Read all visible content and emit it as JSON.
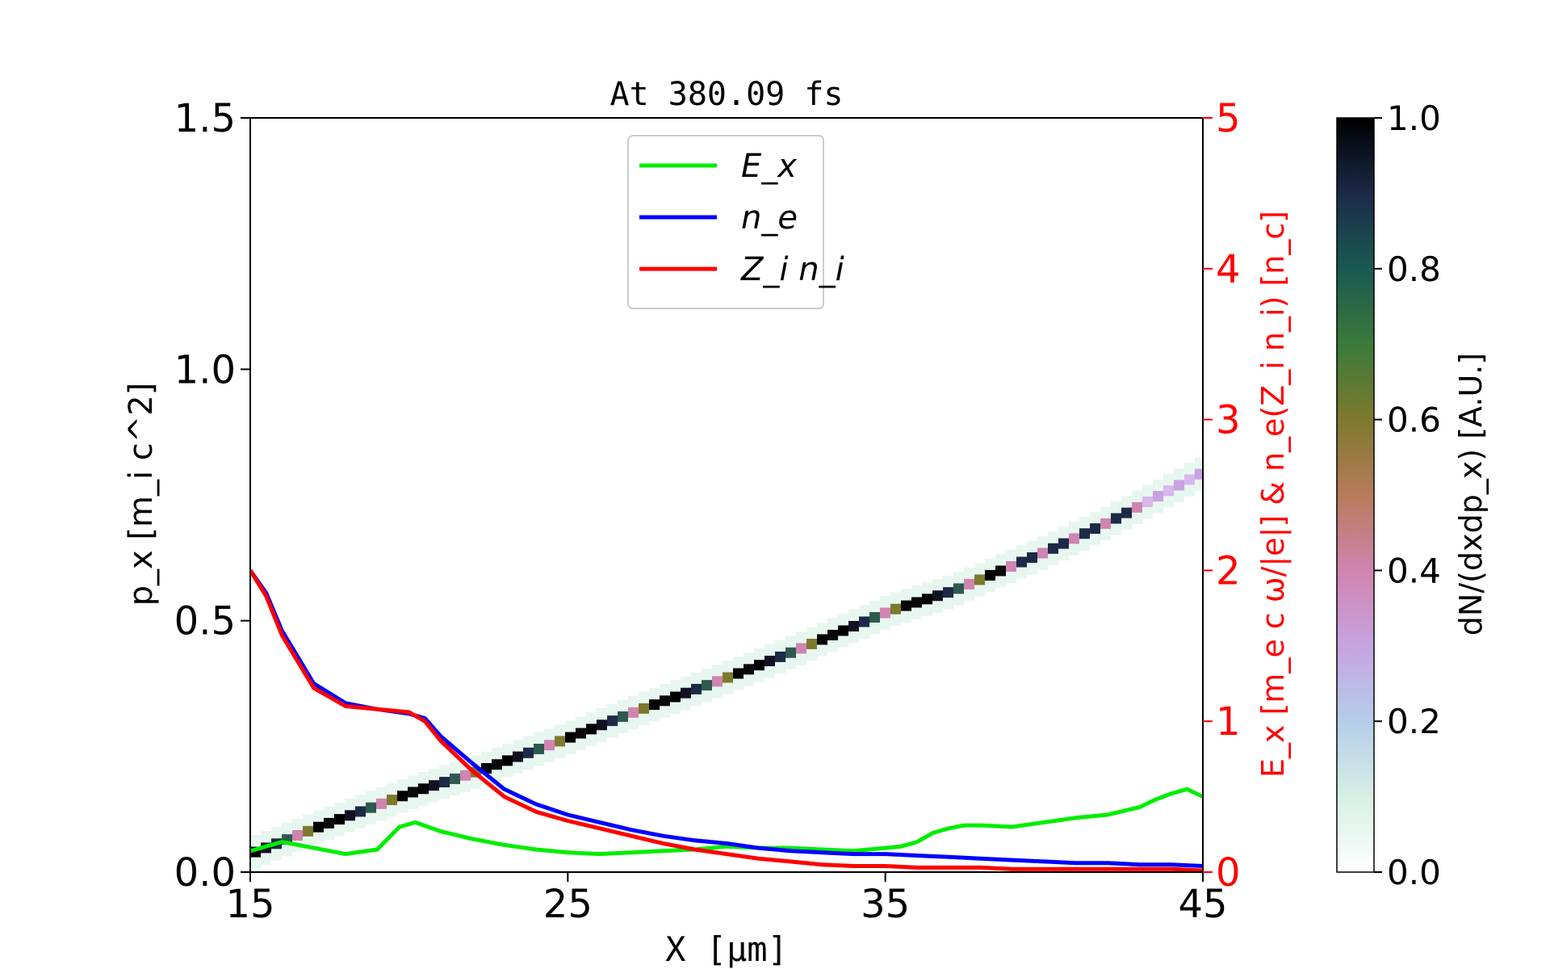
{
  "chart_data": {
    "type": "heatmap",
    "title": "At 380.09 fs",
    "xlabel": "X [μm]",
    "ylabel_left": "p_x  [m_i c^2]",
    "ylabel_right": "E_x  [m_e c ω/|e|]  &  n_e(Z_i n_i)  [n_c]",
    "colorbar_label": "dN/(dxdp_x)  [A.U.]",
    "xlim": [
      15,
      45
    ],
    "ylim_left": [
      0,
      1.5
    ],
    "ylim_right": [
      0,
      5
    ],
    "colorbar_lim": [
      0,
      1
    ],
    "x_ticks": [
      "15",
      "25",
      "35",
      "45"
    ],
    "y_left_ticks": [
      "0.0",
      "0.5",
      "1.0",
      "1.5"
    ],
    "y_right_ticks": [
      "0",
      "1",
      "2",
      "3",
      "4",
      "5"
    ],
    "colorbar_ticks": [
      "0.0",
      "0.2",
      "0.4",
      "0.6",
      "0.8",
      "1.0"
    ],
    "colormap": "cubehelix_r",
    "colors": {
      "right_axis": "#ff0000",
      "Ex": "#00ee00",
      "ne": "#0000ff",
      "Zini": "#ff0000"
    },
    "legend": {
      "placement": "upper center",
      "entries": [
        {
          "series": "Ex",
          "label": "E_x"
        },
        {
          "series": "ne",
          "label": "n_e"
        },
        {
          "series": "Zini",
          "label": "Z_i n_i"
        }
      ]
    },
    "phase_space_ridge": {
      "x": [
        15,
        17,
        20,
        22,
        25,
        27,
        30,
        32,
        35,
        37,
        40,
        42,
        45
      ],
      "px": [
        0.04,
        0.09,
        0.16,
        0.2,
        0.27,
        0.32,
        0.39,
        0.44,
        0.52,
        0.56,
        0.64,
        0.7,
        0.8
      ],
      "note_weight": [
        1,
        1,
        1,
        1,
        1,
        1,
        1,
        1,
        1,
        1,
        0.9,
        0.6,
        0.3
      ]
    },
    "series": [
      {
        "key": "Ex",
        "x": [
          15,
          16,
          17,
          18,
          19,
          19.7,
          20.2,
          21,
          22,
          23,
          24,
          25,
          26,
          27,
          28,
          29,
          30,
          31,
          32,
          33,
          34,
          35,
          35.5,
          36,
          36.5,
          37,
          37.5,
          38,
          39,
          40,
          41,
          42,
          43,
          43.5,
          44,
          44.5,
          45
        ],
        "y": [
          0.14,
          0.2,
          0.16,
          0.12,
          0.15,
          0.3,
          0.33,
          0.27,
          0.22,
          0.18,
          0.15,
          0.13,
          0.12,
          0.13,
          0.14,
          0.15,
          0.17,
          0.16,
          0.16,
          0.15,
          0.14,
          0.16,
          0.17,
          0.2,
          0.26,
          0.29,
          0.31,
          0.31,
          0.3,
          0.33,
          0.36,
          0.38,
          0.43,
          0.48,
          0.52,
          0.55,
          0.5
        ]
      },
      {
        "key": "ne",
        "x": [
          15,
          15.5,
          16,
          17,
          18,
          19,
          20,
          20.5,
          21,
          22,
          23,
          24,
          25,
          26,
          27,
          28,
          29,
          30,
          31,
          32,
          33,
          34,
          35,
          36,
          37,
          38,
          39,
          40,
          41,
          42,
          43,
          44,
          45
        ],
        "y": [
          2.0,
          1.85,
          1.6,
          1.25,
          1.12,
          1.08,
          1.05,
          1.02,
          0.9,
          0.72,
          0.55,
          0.45,
          0.38,
          0.33,
          0.28,
          0.24,
          0.21,
          0.19,
          0.16,
          0.14,
          0.13,
          0.12,
          0.12,
          0.11,
          0.1,
          0.09,
          0.08,
          0.07,
          0.06,
          0.06,
          0.05,
          0.05,
          0.04
        ]
      },
      {
        "key": "Zini",
        "x": [
          15,
          15.5,
          16,
          17,
          18,
          19,
          20,
          20.5,
          21,
          22,
          23,
          24,
          25,
          26,
          27,
          28,
          29,
          30,
          31,
          32,
          33,
          34,
          35,
          36,
          37,
          38,
          39,
          40,
          41,
          42,
          43,
          44,
          45
        ],
        "y": [
          2.0,
          1.83,
          1.57,
          1.22,
          1.1,
          1.08,
          1.06,
          1.0,
          0.87,
          0.67,
          0.5,
          0.4,
          0.34,
          0.29,
          0.24,
          0.19,
          0.15,
          0.12,
          0.09,
          0.07,
          0.05,
          0.04,
          0.04,
          0.03,
          0.03,
          0.03,
          0.02,
          0.02,
          0.02,
          0.02,
          0.02,
          0.02,
          0.01
        ]
      }
    ]
  }
}
